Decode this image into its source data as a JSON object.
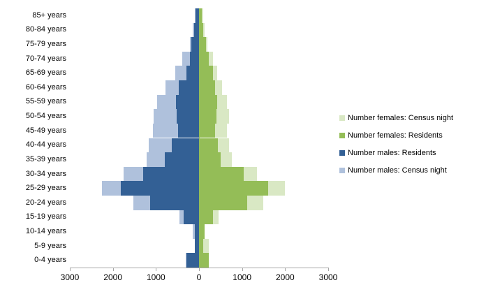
{
  "chart_data": {
    "type": "bar",
    "subtype": "population-pyramid",
    "orientation": "horizontal",
    "title": "",
    "xlabel": "",
    "ylabel": "",
    "grid": false,
    "legend_position": "right",
    "categories": [
      "85+ years",
      "80-84 years",
      "75-79 years",
      "70-74 years",
      "65-69 years",
      "60-64 years",
      "55-59 years",
      "50-54 years",
      "45-49 years",
      "40-44 years",
      "35-39 years",
      "30-34 years",
      "25-29 years",
      "20-24 years",
      "15-19 years",
      "10-14 years",
      "5-9 years",
      "0-4 years"
    ],
    "x_axis": {
      "tick_labels": [
        "3000",
        "2000",
        "1000",
        "0",
        "1000",
        "2000",
        "3000"
      ],
      "tick_values": [
        -3000,
        -2000,
        -1000,
        0,
        1000,
        2000,
        3000
      ],
      "range": [
        -3000,
        3000
      ]
    },
    "series": [
      {
        "name": "Number females: Census night",
        "side": "right",
        "color": "#d9e8c4",
        "values": [
          100,
          130,
          195,
          325,
          420,
          540,
          650,
          690,
          650,
          700,
          760,
          1350,
          2000,
          1490,
          455,
          120,
          230,
          210
        ]
      },
      {
        "name": "Number females: Residents",
        "side": "right",
        "color": "#94bd57",
        "values": [
          65,
          100,
          160,
          230,
          325,
          370,
          420,
          410,
          370,
          430,
          510,
          1030,
          1610,
          1120,
          325,
          130,
          100,
          230
        ]
      },
      {
        "name": "Number males: Residents",
        "side": "left",
        "color": "#336095",
        "values": [
          80,
          115,
          180,
          210,
          300,
          470,
          535,
          520,
          490,
          630,
          795,
          1300,
          1810,
          1130,
          350,
          100,
          100,
          290
        ]
      },
      {
        "name": "Number males: Census night",
        "side": "left",
        "color": "#afc1dc",
        "values": [
          90,
          145,
          210,
          390,
          545,
          780,
          970,
          1060,
          1065,
          1160,
          1220,
          1750,
          2260,
          1530,
          450,
          145,
          90,
          310
        ]
      }
    ]
  },
  "colors": {
    "axis": "#a6a6a6",
    "text": "#000000",
    "background": "#ffffff"
  }
}
